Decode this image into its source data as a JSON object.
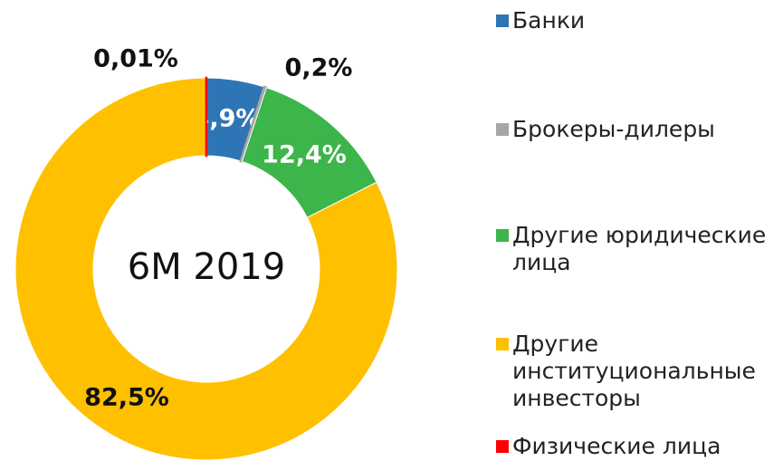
{
  "chart_data": {
    "type": "donut",
    "center_label": "6M 2019",
    "categories": [
      "Банки",
      "Брокеры-дилеры",
      "Другие юридические лица",
      "Другие институциональные инвесторы",
      "Физические лица"
    ],
    "values": [
      4.9,
      0.2,
      12.4,
      82.5,
      0.01
    ],
    "value_labels": [
      "4,9%",
      "0,2%",
      "12,4%",
      "82,5%",
      "0,01%"
    ],
    "colors": [
      "#2e75b6",
      "#a6a6a6",
      "#3cb54a",
      "#ffc000",
      "#ff0000"
    ],
    "legend": "right"
  }
}
